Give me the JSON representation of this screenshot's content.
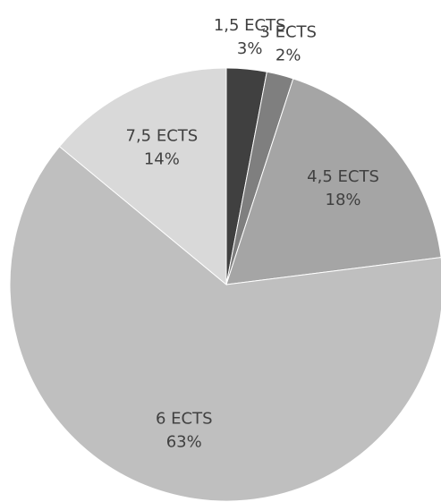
{
  "chart_data": {
    "type": "pie",
    "categories": [
      "1,5 ECTS",
      "3 ECTS",
      "4,5 ECTS",
      "6 ECTS",
      "7,5 ECTS"
    ],
    "values": [
      3,
      2,
      18,
      63,
      14
    ],
    "value_labels": [
      "3%",
      "2%",
      "18%",
      "63%",
      "14%"
    ],
    "colors": [
      "#404040",
      "#7f7f7f",
      "#a5a5a5",
      "#bfbfbf",
      "#d9d9d9"
    ]
  }
}
